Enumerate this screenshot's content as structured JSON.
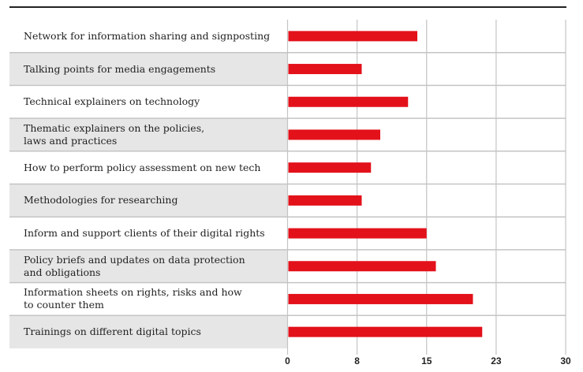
{
  "chart_data": {
    "type": "bar",
    "orientation": "horizontal",
    "title": "",
    "xlabel": "",
    "ylabel": "",
    "categories": [
      "Network for information sharing and signposting",
      "Talking points for media engagements",
      "Technical explainers on technology",
      "Thematic explainers on the policies,\nlaws and practices",
      "How to perform policy assessment on new tech",
      "Methodologies for researching",
      "Inform and support clients of their digital rights",
      "Policy briefs and updates on data protection\nand obligations",
      "Information sheets on rights, risks and how\nto counter them",
      "Trainings on different digital topics"
    ],
    "values": [
      14,
      8,
      13,
      10,
      9,
      8,
      15,
      16,
      20,
      21
    ],
    "xlim": [
      0,
      30
    ],
    "xticks": [
      0,
      7.5,
      15,
      22.5,
      30
    ],
    "xtick_labels": [
      "0",
      "8",
      "15",
      "23",
      "30"
    ],
    "grid": true,
    "legend": "none",
    "colors": {
      "bar": "#e3111a",
      "row_alt": "#e6e6e6",
      "grid": "#c4c4c4",
      "text": "#222222"
    }
  }
}
